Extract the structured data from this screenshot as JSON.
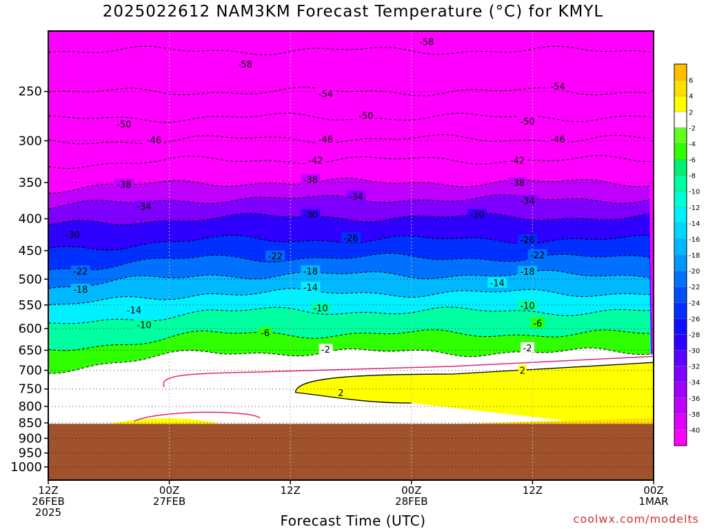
{
  "title": "2025022612 NAM3KM Forecast Temperature (°C) for KMYL",
  "xlabel": "Forecast Time (UTC)",
  "credit": "coolwx.com/modelts",
  "chart_data": {
    "type": "heatmap",
    "title": "2025022612 NAM3KM Forecast Temperature (°C) for KMYL",
    "xlabel": "Forecast Time (UTC)",
    "ylabel": "",
    "x_range_hours": [
      0,
      60
    ],
    "x_ticks": [
      {
        "hour": 0,
        "lines": [
          "12Z",
          "26FEB",
          "2025"
        ]
      },
      {
        "hour": 12,
        "lines": [
          "00Z",
          "27FEB"
        ]
      },
      {
        "hour": 24,
        "lines": [
          "12Z"
        ]
      },
      {
        "hour": 36,
        "lines": [
          "00Z",
          "28FEB"
        ]
      },
      {
        "hour": 48,
        "lines": [
          "12Z"
        ]
      },
      {
        "hour": 60,
        "lines": [
          "00Z",
          "1MAR"
        ]
      }
    ],
    "y_axis": {
      "scale": "log",
      "range_hPa": [
        1050,
        200
      ]
    },
    "y_ticks": [
      250,
      300,
      350,
      400,
      450,
      500,
      550,
      600,
      650,
      700,
      750,
      800,
      850,
      900,
      950,
      1000
    ],
    "ground_level_hPa": 853,
    "colorbar": {
      "levels": [
        -40,
        -38,
        -36,
        -34,
        -32,
        -30,
        -28,
        -26,
        -24,
        -22,
        -20,
        -18,
        -16,
        -14,
        -12,
        -10,
        -8,
        -6,
        -4,
        -2,
        2,
        4,
        6
      ],
      "colors": [
        "#ff00ff",
        "#e000ff",
        "#c000ff",
        "#a000ff",
        "#8000ff",
        "#5a00ff",
        "#3000ff",
        "#1010ff",
        "#0030ff",
        "#0050ff",
        "#0070ff",
        "#0098ff",
        "#00b8ff",
        "#00d8ff",
        "#00f0ff",
        "#00ffd8",
        "#00ffa0",
        "#00f070",
        "#30ff00",
        "#60ff20",
        "#ffffff",
        "#ffff00",
        "#ffe000",
        "#ffc000"
      ]
    },
    "isotherm_levels": [
      {
        "hPa": 215,
        "temp": -58
      },
      {
        "hPa": 250,
        "temp": -54
      },
      {
        "hPa": 275,
        "temp": -50
      },
      {
        "hPa": 298,
        "temp": -46
      },
      {
        "hPa": 322,
        "temp": -42
      },
      {
        "hPa": 350,
        "temp": -38
      },
      {
        "hPa": 372,
        "temp": -34
      },
      {
        "hPa": 398,
        "temp": -30
      },
      {
        "hPa": 432,
        "temp": -26
      },
      {
        "hPa": 462,
        "temp": -22
      },
      {
        "hPa": 492,
        "temp": -18
      },
      {
        "hPa": 526,
        "temp": -14
      },
      {
        "hPa": 563,
        "temp": -10
      },
      {
        "hPa": 612,
        "temp": -6
      },
      {
        "hPa": 655,
        "temp": -2
      }
    ],
    "contour_labels": [
      {
        "hour": 37.5,
        "hPa": 208,
        "text": "-58"
      },
      {
        "hour": 19.5,
        "hPa": 226,
        "text": "-58"
      },
      {
        "hour": 27.5,
        "hPa": 252,
        "text": "-54"
      },
      {
        "hour": 50.5,
        "hPa": 245,
        "text": "-54"
      },
      {
        "hour": 31.5,
        "hPa": 273,
        "text": "-50"
      },
      {
        "hour": 7.5,
        "hPa": 282,
        "text": "-50"
      },
      {
        "hour": 47.5,
        "hPa": 279,
        "text": "-50"
      },
      {
        "hour": 10.5,
        "hPa": 299,
        "text": "-46"
      },
      {
        "hour": 27.5,
        "hPa": 298,
        "text": "-46"
      },
      {
        "hour": 50.5,
        "hPa": 298,
        "text": "-46"
      },
      {
        "hour": 26.5,
        "hPa": 322,
        "text": "-42"
      },
      {
        "hour": 46.5,
        "hPa": 322,
        "text": "-42"
      },
      {
        "hour": 26.0,
        "hPa": 346,
        "text": "-38"
      },
      {
        "hour": 7.5,
        "hPa": 352,
        "text": "-38"
      },
      {
        "hour": 46.5,
        "hPa": 350,
        "text": "-38"
      },
      {
        "hour": 30.5,
        "hPa": 368,
        "text": "-34"
      },
      {
        "hour": 9.5,
        "hPa": 382,
        "text": "-34"
      },
      {
        "hour": 47.5,
        "hPa": 374,
        "text": "-34"
      },
      {
        "hour": 26.0,
        "hPa": 394,
        "text": "-30"
      },
      {
        "hour": 42.5,
        "hPa": 394,
        "text": "-30"
      },
      {
        "hour": 2.4,
        "hPa": 424,
        "text": "-30"
      },
      {
        "hour": 30.0,
        "hPa": 429,
        "text": "-26"
      },
      {
        "hour": 47.5,
        "hPa": 432,
        "text": "-26"
      },
      {
        "hour": 22.5,
        "hPa": 459,
        "text": "-22"
      },
      {
        "hour": 48.5,
        "hPa": 457,
        "text": "-22"
      },
      {
        "hour": 3.2,
        "hPa": 485,
        "text": "-22"
      },
      {
        "hour": 26.0,
        "hPa": 485,
        "text": "-18"
      },
      {
        "hour": 47.5,
        "hPa": 486,
        "text": "-18"
      },
      {
        "hour": 3.2,
        "hPa": 519,
        "text": "-18"
      },
      {
        "hour": 26.0,
        "hPa": 515,
        "text": "-14"
      },
      {
        "hour": 44.5,
        "hPa": 507,
        "text": "-14"
      },
      {
        "hour": 8.5,
        "hPa": 560,
        "text": "-14"
      },
      {
        "hour": 27.0,
        "hPa": 556,
        "text": "-10"
      },
      {
        "hour": 47.5,
        "hPa": 551,
        "text": "-10"
      },
      {
        "hour": 9.5,
        "hPa": 592,
        "text": "-10"
      },
      {
        "hour": 48.5,
        "hPa": 588,
        "text": "-6"
      },
      {
        "hour": 21.5,
        "hPa": 609,
        "text": "-6"
      },
      {
        "hour": 27.5,
        "hPa": 648,
        "text": "-2"
      },
      {
        "hour": 47.5,
        "hPa": 644,
        "text": "-2"
      },
      {
        "hour": 47.0,
        "hPa": 700,
        "text": "2"
      },
      {
        "hour": 29.0,
        "hPa": 760,
        "text": "2"
      }
    ]
  }
}
